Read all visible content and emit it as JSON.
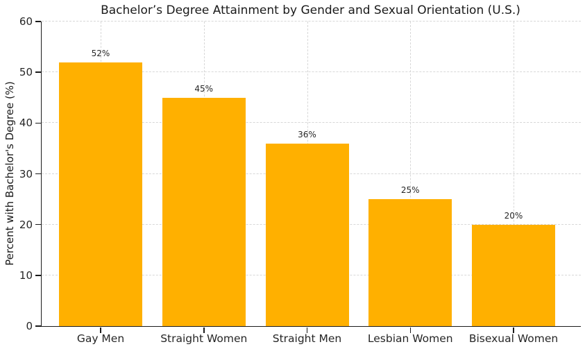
{
  "chart_data": {
    "type": "bar",
    "title": "Bachelor’s Degree Attainment by Gender and Sexual Orientation (U.S.)",
    "xlabel": "",
    "ylabel": "Percent with Bachelor's Degree (%)",
    "categories": [
      "Gay Men",
      "Straight Women",
      "Straight Men",
      "Lesbian Women",
      "Bisexual Women"
    ],
    "values": [
      52,
      45,
      36,
      25,
      20
    ],
    "value_labels": [
      "52%",
      "45%",
      "36%",
      "25%",
      "20%"
    ],
    "ylim": [
      0,
      60
    ],
    "yticks": [
      0,
      10,
      20,
      30,
      40,
      50,
      60
    ],
    "ytick_labels": [
      "0",
      "10",
      "20",
      "30",
      "40",
      "50",
      "60"
    ],
    "grid": "dashed horizontal and vertical gridlines",
    "legend": "none",
    "bar_color": "#FFB000",
    "spine_color": "#1a1a1a",
    "grid_color": "#d7d7d7",
    "text_color": "#262626"
  }
}
